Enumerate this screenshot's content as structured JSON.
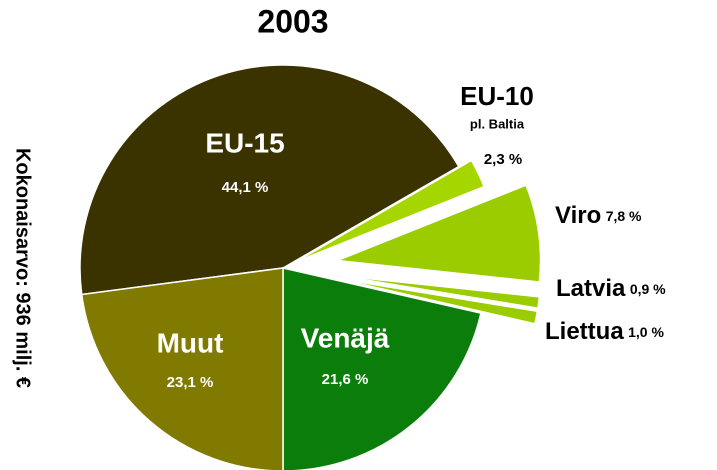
{
  "chart_data": {
    "type": "pie",
    "title": "2003",
    "y_label": "Kokonaisarvo: 936 milj. €",
    "categories": [
      "EU-15",
      "EU-10",
      "Viro",
      "Latvia",
      "Liettua",
      "Venäjä",
      "Muut"
    ],
    "values": [
      44.1,
      2.3,
      7.8,
      0.9,
      1.0,
      21.6,
      23.1
    ],
    "value_labels": [
      "44,1 %",
      "2,3 %",
      "7,8 %",
      "0,9 %",
      "1,0 %",
      "21,6 %",
      "23,1 %"
    ],
    "colors": [
      "#3a3300",
      "#a6d600",
      "#9acc00",
      "#9acc00",
      "#9acc00",
      "#0b7d0b",
      "#817a00"
    ],
    "annotations": [
      {
        "text": "pl. Baltia"
      }
    ]
  }
}
